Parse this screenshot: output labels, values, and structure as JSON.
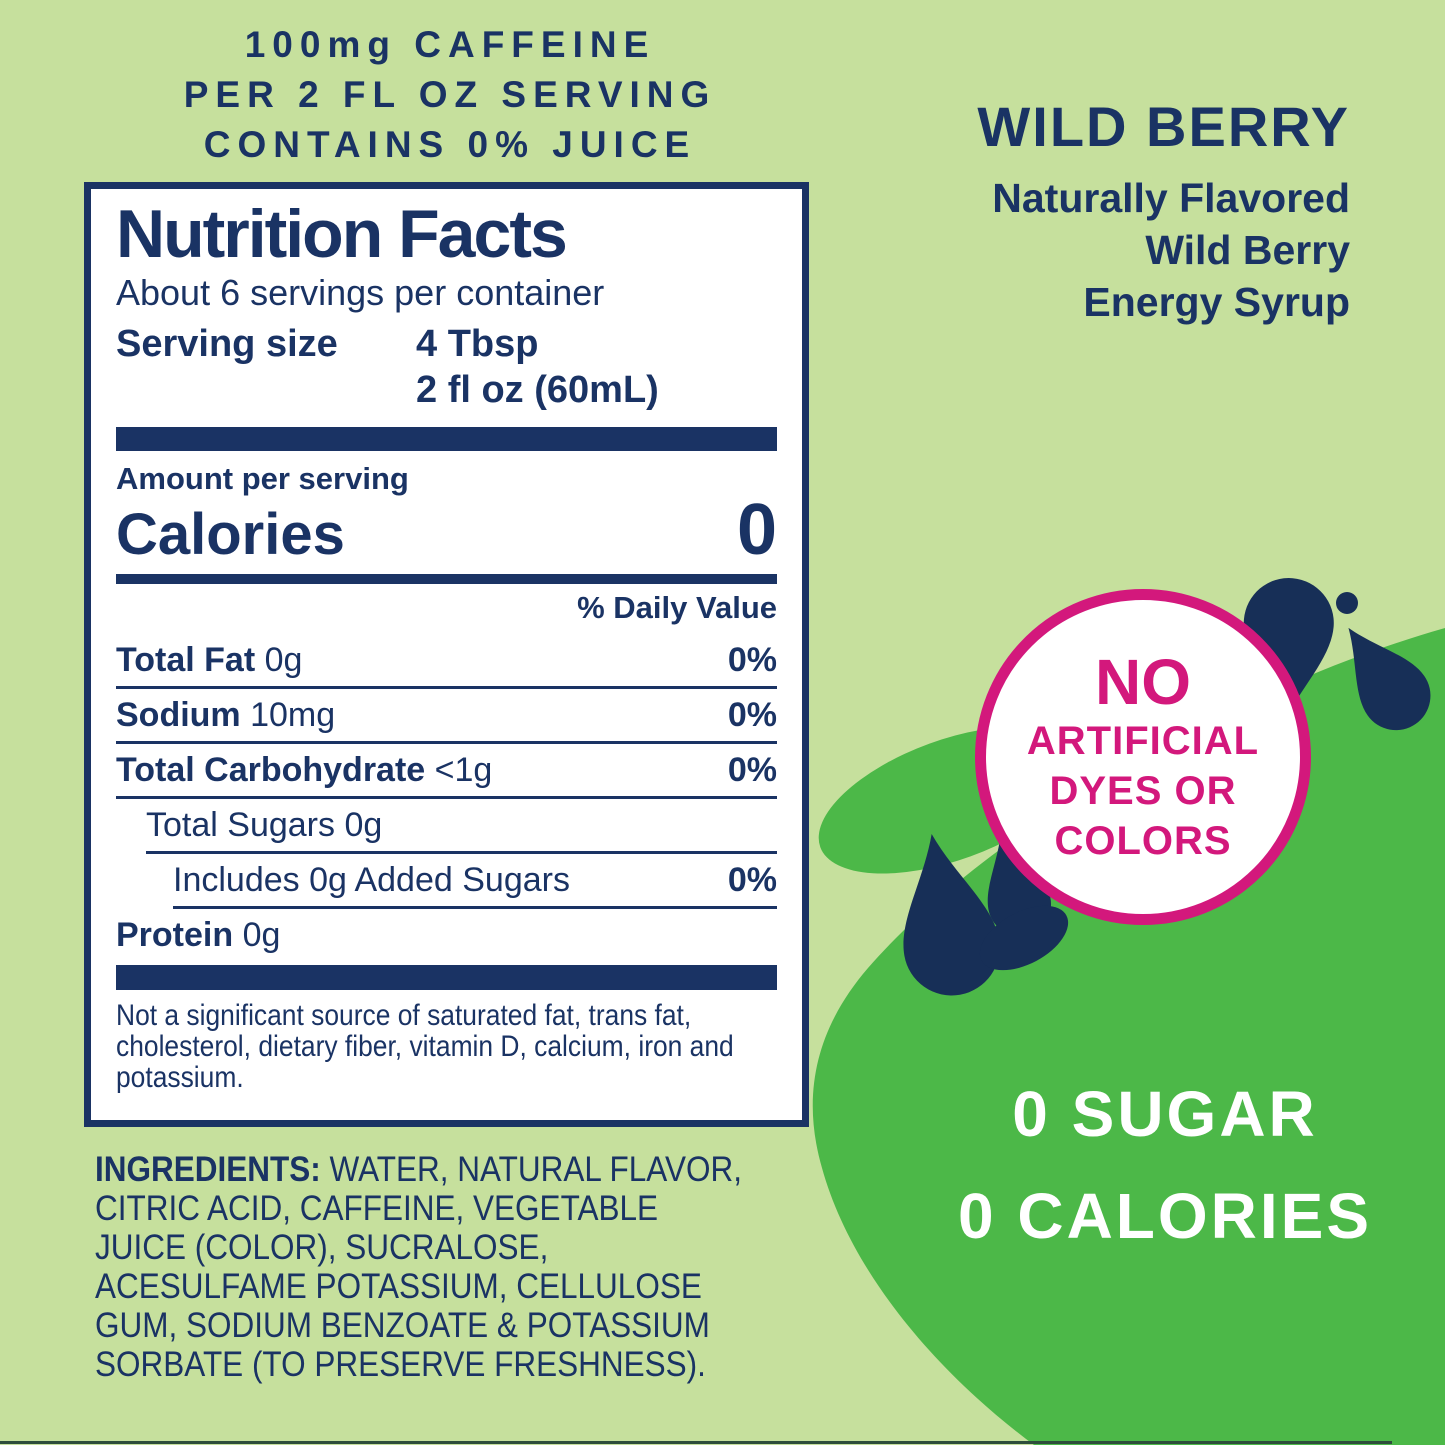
{
  "colors": {
    "background_light_green": "#c6e09d",
    "blob_dark_green": "#4cb848",
    "navy": "#1a3364",
    "droplet_navy": "#172f57",
    "pink": "#d3187c",
    "white": "#ffffff"
  },
  "top_banner": {
    "lines": [
      "100mg CAFFEINE",
      "PER 2 FL OZ SERVING",
      "CONTAINS 0% JUICE"
    ]
  },
  "flavor_panel": {
    "title": "WILD BERRY",
    "subtitle_lines": [
      "Naturally Flavored",
      "Wild Berry",
      "Energy Syrup"
    ]
  },
  "badge": {
    "lines": [
      "NO",
      "ARTIFICIAL",
      "DYES OR",
      "COLORS"
    ]
  },
  "claims": {
    "line1": "0 SUGAR",
    "line2": "0 CALORIES"
  },
  "nutrition_facts": {
    "title": "Nutrition Facts",
    "servings_per_container": "About 6 servings per container",
    "serving_size_label": "Serving size",
    "serving_size_value_line1": "4 Tbsp",
    "serving_size_value_line2": "2 fl oz (60mL)",
    "amount_per_serving_label": "Amount per serving",
    "calories_label": "Calories",
    "calories_value": "0",
    "daily_value_header": "% Daily Value",
    "rows": [
      {
        "name": "Total Fat",
        "value": "0g",
        "dv": "0%",
        "indent": 0,
        "bold": true
      },
      {
        "name": "Sodium",
        "value": "10mg",
        "dv": "0%",
        "indent": 0,
        "bold": true
      },
      {
        "name": "Total Carbohydrate",
        "value": "<1g",
        "dv": "0%",
        "indent": 0,
        "bold": true
      },
      {
        "name": "Total Sugars",
        "value": "0g",
        "dv": "",
        "indent": 1,
        "bold": false
      },
      {
        "name": "Includes 0g Added Sugars",
        "value": "",
        "dv": "0%",
        "indent": 2,
        "bold": false
      },
      {
        "name": "Protein",
        "value": "0g",
        "dv": "",
        "indent": 0,
        "bold": true
      }
    ],
    "footnote": "Not a significant source of saturated fat, trans fat, cholesterol, dietary fiber, vitamin D, calcium, iron and potassium."
  },
  "ingredients": {
    "label": "INGREDIENTS:",
    "text": " WATER, NATURAL FLAVOR, CITRIC ACID, CAFFEINE, VEGETABLE JUICE (COLOR), SUCRALOSE, ACESULFAME POTASSIUM, CELLULOSE GUM, SODIUM BENZOATE & POTASSIUM SORBATE (TO PRESERVE FRESHNESS)."
  }
}
